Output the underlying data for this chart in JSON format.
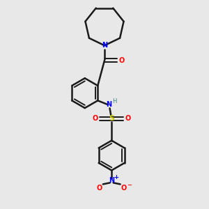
{
  "background_color": "#e8e8e8",
  "bond_color": "#1a1a1a",
  "N_color": "#0000ff",
  "O_color": "#ff0000",
  "S_color": "#cccc00",
  "H_color": "#408080",
  "figsize": [
    3.0,
    3.0
  ],
  "dpi": 100,
  "xlim": [
    0,
    10
  ],
  "ylim": [
    0,
    10
  ]
}
